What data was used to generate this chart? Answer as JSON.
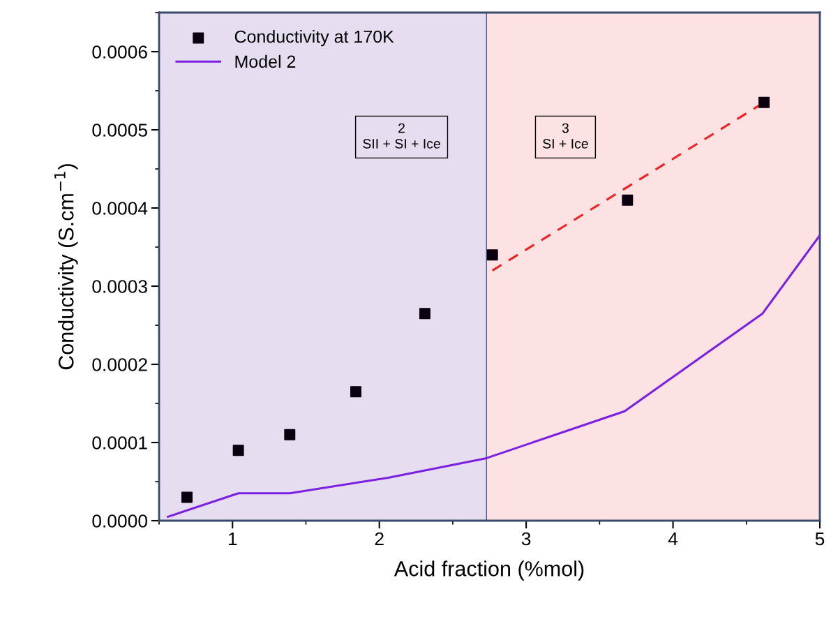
{
  "chart_data": {
    "type": "scatter",
    "xlabel": "Acid fraction (%mol)",
    "ylabel": "Conductivity (S.cm$^{−1}$)",
    "xlim": [
      0.5,
      5
    ],
    "xticks": [
      1,
      2,
      3,
      4,
      5
    ],
    "ylim": [
      0,
      0.00065
    ],
    "yticks": [
      {
        "value": 0,
        "label": "0.0000"
      },
      {
        "value": 0.0001,
        "label": "0.0001"
      },
      {
        "value": 0.0002,
        "label": "0.0002"
      },
      {
        "value": 0.0003,
        "label": "0.0003"
      },
      {
        "value": 0.0004,
        "label": "0.0004"
      },
      {
        "value": 0.0005,
        "label": "0.0005"
      },
      {
        "value": 0.0006,
        "label": "0.0006"
      }
    ],
    "grid": false,
    "legend": "top left",
    "series": [
      {
        "name": "Conductivity at 170K",
        "marker": "square",
        "color": "#0a0010",
        "x": [
          0.69,
          1.04,
          1.39,
          1.84,
          2.31,
          2.77,
          3.69,
          4.62
        ],
        "values": [
          3e-05,
          9e-05,
          0.00011,
          0.000165,
          0.000265,
          0.00034,
          0.00041,
          0.000535
        ]
      },
      {
        "name": "Model 2",
        "type": "line",
        "marker": "none",
        "line_style": "solid",
        "color": "#7b1fe0",
        "x": [
          0.56,
          1.04,
          1.39,
          2.06,
          2.73,
          3.67,
          4.61,
          5.0
        ],
        "values": [
          5e-06,
          3.5e-05,
          3.5e-05,
          5.5e-05,
          8e-05,
          0.00014,
          0.000265,
          0.000365
        ]
      },
      {
        "type": "line",
        "marker": "none",
        "line_style": "dashed",
        "color": "#ee2222",
        "x": [
          2.77,
          4.62
        ],
        "values": [
          0.00032,
          0.000535
        ]
      }
    ],
    "bands": [
      {
        "axis": "x",
        "from": 0.5,
        "to": 2.73,
        "color": "#e6def0"
      },
      {
        "axis": "x",
        "from": 2.73,
        "to": 5,
        "color": "#fde2e3"
      }
    ],
    "ref_lines": [
      {
        "axis": "x",
        "value": 2.73,
        "color": "#4a5a8a",
        "line_style": "solid"
      }
    ],
    "annotations": [
      "2\nSII + SI + Ice",
      "3\nSI + Ice"
    ]
  }
}
